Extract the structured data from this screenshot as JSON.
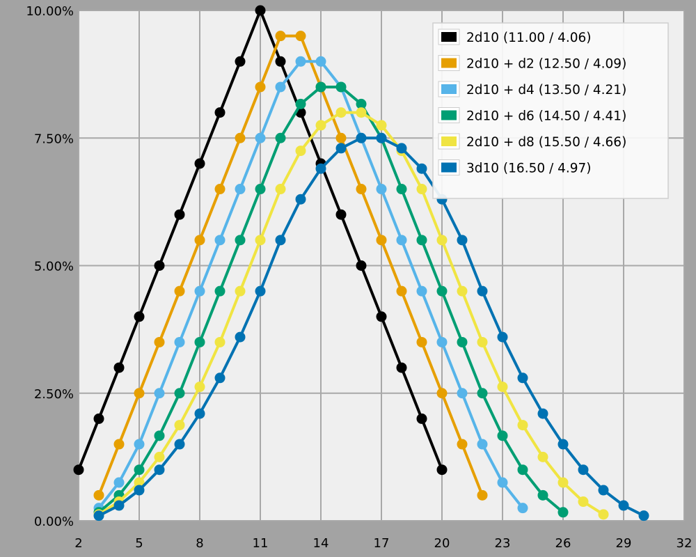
{
  "chart_data": {
    "type": "line",
    "title": "",
    "xlabel": "",
    "ylabel": "",
    "xlim": [
      2,
      32
    ],
    "ylim": [
      0,
      10
    ],
    "x_ticks": [
      "2",
      "5",
      "8",
      "11",
      "14",
      "17",
      "20",
      "23",
      "26",
      "29",
      "32"
    ],
    "x_tick_values": [
      2,
      5,
      8,
      11,
      14,
      17,
      20,
      23,
      26,
      29,
      32
    ],
    "y_ticks": [
      "0.00%",
      "2.50%",
      "5.00%",
      "7.50%",
      "10.00%"
    ],
    "y_tick_values": [
      0,
      2.5,
      5,
      7.5,
      10
    ],
    "grid": true,
    "legend_position": "top-right",
    "series": [
      {
        "name": "2d10 (11.00 / 4.06)",
        "color": "#000000",
        "x_start": 2,
        "values": [
          1,
          2,
          3,
          4,
          5,
          6,
          7,
          8,
          9,
          10,
          9,
          8,
          7,
          6,
          5,
          4,
          3,
          2,
          1
        ]
      },
      {
        "name": "2d10 + d2 (12.50 / 4.09)",
        "color": "#E69F00",
        "x_start": 3,
        "values": [
          0.5,
          1.5,
          2.5,
          3.5,
          4.5,
          5.5,
          6.5,
          7.5,
          8.5,
          9.5,
          9.5,
          8.5,
          7.5,
          6.5,
          5.5,
          4.5,
          3.5,
          2.5,
          1.5,
          0.5
        ]
      },
      {
        "name": "2d10 + d4 (13.50 / 4.21)",
        "color": "#56B4E9",
        "x_start": 3,
        "values": [
          0.25,
          0.75,
          1.5,
          2.5,
          3.5,
          4.5,
          5.5,
          6.5,
          7.5,
          8.5,
          9,
          9,
          8.5,
          7.5,
          6.5,
          5.5,
          4.5,
          3.5,
          2.5,
          1.5,
          0.75,
          0.25
        ]
      },
      {
        "name": "2d10 + d6 (14.50 / 4.41)",
        "color": "#009E73",
        "x_start": 3,
        "values": [
          0.1667,
          0.5,
          1,
          1.6667,
          2.5,
          3.5,
          4.5,
          5.5,
          6.5,
          7.5,
          8.1667,
          8.5,
          8.5,
          8.1667,
          7.5,
          6.5,
          5.5,
          4.5,
          3.5,
          2.5,
          1.6667,
          1,
          0.5,
          0.1667
        ]
      },
      {
        "name": "2d10 + d8 (15.50 / 4.66)",
        "color": "#F0E442",
        "x_start": 3,
        "values": [
          0.125,
          0.375,
          0.75,
          1.25,
          1.875,
          2.625,
          3.5,
          4.5,
          5.5,
          6.5,
          7.25,
          7.75,
          8,
          8,
          7.75,
          7.25,
          6.5,
          5.5,
          4.5,
          3.5,
          2.625,
          1.875,
          1.25,
          0.75,
          0.375,
          0.125
        ]
      },
      {
        "name": "3d10 (16.50 / 4.97)",
        "color": "#0072B2",
        "x_start": 3,
        "values": [
          0.1,
          0.3,
          0.6,
          1,
          1.5,
          2.1,
          2.8,
          3.6,
          4.5,
          5.5,
          6.3,
          6.9,
          7.3,
          7.5,
          7.5,
          7.3,
          6.9,
          6.3,
          5.5,
          4.5,
          3.6,
          2.8,
          2.1,
          1.5,
          1,
          0.6,
          0.3,
          0.1
        ]
      }
    ]
  }
}
